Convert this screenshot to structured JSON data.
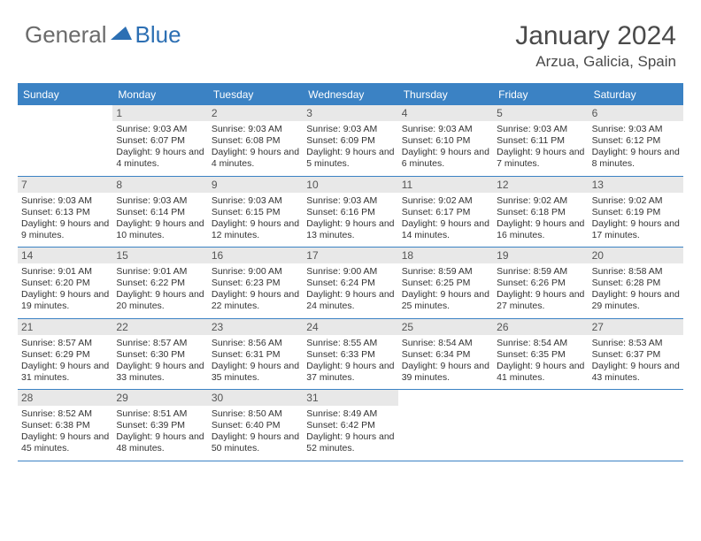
{
  "logo": {
    "general": "General",
    "blue": "Blue"
  },
  "title": "January 2024",
  "location": "Arzua, Galicia, Spain",
  "colors": {
    "header_bar": "#3b82c4",
    "day_bar": "#e8e8e8",
    "text": "#333333",
    "logo_gray": "#6b6b6b",
    "logo_blue": "#2c6fb3"
  },
  "weekdays": [
    "Sunday",
    "Monday",
    "Tuesday",
    "Wednesday",
    "Thursday",
    "Friday",
    "Saturday"
  ],
  "weeks": [
    [
      null,
      {
        "n": "1",
        "sr": "9:03 AM",
        "ss": "6:07 PM",
        "dl": "9 hours and 4 minutes."
      },
      {
        "n": "2",
        "sr": "9:03 AM",
        "ss": "6:08 PM",
        "dl": "9 hours and 4 minutes."
      },
      {
        "n": "3",
        "sr": "9:03 AM",
        "ss": "6:09 PM",
        "dl": "9 hours and 5 minutes."
      },
      {
        "n": "4",
        "sr": "9:03 AM",
        "ss": "6:10 PM",
        "dl": "9 hours and 6 minutes."
      },
      {
        "n": "5",
        "sr": "9:03 AM",
        "ss": "6:11 PM",
        "dl": "9 hours and 7 minutes."
      },
      {
        "n": "6",
        "sr": "9:03 AM",
        "ss": "6:12 PM",
        "dl": "9 hours and 8 minutes."
      }
    ],
    [
      {
        "n": "7",
        "sr": "9:03 AM",
        "ss": "6:13 PM",
        "dl": "9 hours and 9 minutes."
      },
      {
        "n": "8",
        "sr": "9:03 AM",
        "ss": "6:14 PM",
        "dl": "9 hours and 10 minutes."
      },
      {
        "n": "9",
        "sr": "9:03 AM",
        "ss": "6:15 PM",
        "dl": "9 hours and 12 minutes."
      },
      {
        "n": "10",
        "sr": "9:03 AM",
        "ss": "6:16 PM",
        "dl": "9 hours and 13 minutes."
      },
      {
        "n": "11",
        "sr": "9:02 AM",
        "ss": "6:17 PM",
        "dl": "9 hours and 14 minutes."
      },
      {
        "n": "12",
        "sr": "9:02 AM",
        "ss": "6:18 PM",
        "dl": "9 hours and 16 minutes."
      },
      {
        "n": "13",
        "sr": "9:02 AM",
        "ss": "6:19 PM",
        "dl": "9 hours and 17 minutes."
      }
    ],
    [
      {
        "n": "14",
        "sr": "9:01 AM",
        "ss": "6:20 PM",
        "dl": "9 hours and 19 minutes."
      },
      {
        "n": "15",
        "sr": "9:01 AM",
        "ss": "6:22 PM",
        "dl": "9 hours and 20 minutes."
      },
      {
        "n": "16",
        "sr": "9:00 AM",
        "ss": "6:23 PM",
        "dl": "9 hours and 22 minutes."
      },
      {
        "n": "17",
        "sr": "9:00 AM",
        "ss": "6:24 PM",
        "dl": "9 hours and 24 minutes."
      },
      {
        "n": "18",
        "sr": "8:59 AM",
        "ss": "6:25 PM",
        "dl": "9 hours and 25 minutes."
      },
      {
        "n": "19",
        "sr": "8:59 AM",
        "ss": "6:26 PM",
        "dl": "9 hours and 27 minutes."
      },
      {
        "n": "20",
        "sr": "8:58 AM",
        "ss": "6:28 PM",
        "dl": "9 hours and 29 minutes."
      }
    ],
    [
      {
        "n": "21",
        "sr": "8:57 AM",
        "ss": "6:29 PM",
        "dl": "9 hours and 31 minutes."
      },
      {
        "n": "22",
        "sr": "8:57 AM",
        "ss": "6:30 PM",
        "dl": "9 hours and 33 minutes."
      },
      {
        "n": "23",
        "sr": "8:56 AM",
        "ss": "6:31 PM",
        "dl": "9 hours and 35 minutes."
      },
      {
        "n": "24",
        "sr": "8:55 AM",
        "ss": "6:33 PM",
        "dl": "9 hours and 37 minutes."
      },
      {
        "n": "25",
        "sr": "8:54 AM",
        "ss": "6:34 PM",
        "dl": "9 hours and 39 minutes."
      },
      {
        "n": "26",
        "sr": "8:54 AM",
        "ss": "6:35 PM",
        "dl": "9 hours and 41 minutes."
      },
      {
        "n": "27",
        "sr": "8:53 AM",
        "ss": "6:37 PM",
        "dl": "9 hours and 43 minutes."
      }
    ],
    [
      {
        "n": "28",
        "sr": "8:52 AM",
        "ss": "6:38 PM",
        "dl": "9 hours and 45 minutes."
      },
      {
        "n": "29",
        "sr": "8:51 AM",
        "ss": "6:39 PM",
        "dl": "9 hours and 48 minutes."
      },
      {
        "n": "30",
        "sr": "8:50 AM",
        "ss": "6:40 PM",
        "dl": "9 hours and 50 minutes."
      },
      {
        "n": "31",
        "sr": "8:49 AM",
        "ss": "6:42 PM",
        "dl": "9 hours and 52 minutes."
      },
      null,
      null,
      null
    ]
  ],
  "labels": {
    "sunrise": "Sunrise: ",
    "sunset": "Sunset: ",
    "daylight": "Daylight: "
  }
}
